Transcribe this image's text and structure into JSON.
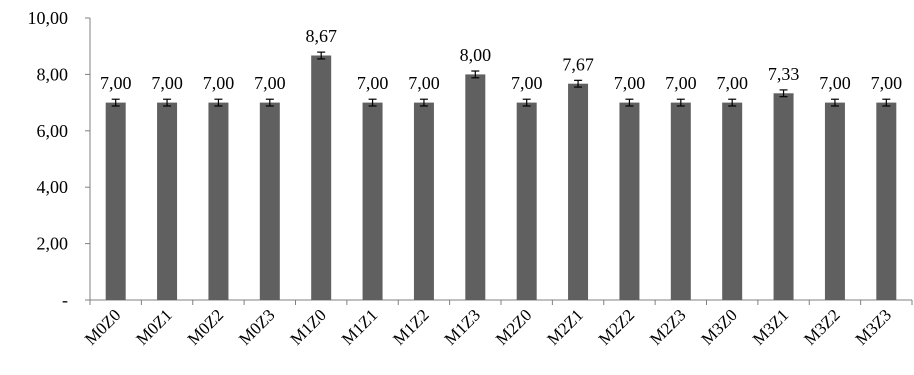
{
  "chart_data": {
    "type": "bar",
    "title": "",
    "xlabel": "",
    "ylabel": "",
    "categories": [
      "M0Z0",
      "M0Z1",
      "M0Z2",
      "M0Z3",
      "M1Z0",
      "M1Z1",
      "M1Z2",
      "M1Z3",
      "M2Z0",
      "M2Z1",
      "M2Z2",
      "M2Z3",
      "M3Z0",
      "M3Z1",
      "M3Z2",
      "M3Z3"
    ],
    "values": [
      7.0,
      7.0,
      7.0,
      7.0,
      8.67,
      7.0,
      7.0,
      8.0,
      7.0,
      7.67,
      7.0,
      7.0,
      7.0,
      7.33,
      7.0,
      7.0
    ],
    "value_labels": [
      "7,00",
      "7,00",
      "7,00",
      "7,00",
      "8,67",
      "7,00",
      "7,00",
      "8,00",
      "7,00",
      "7,67",
      "7,00",
      "7,00",
      "7,00",
      "7,33",
      "7,00",
      "7,00"
    ],
    "error": [
      0.12,
      0.12,
      0.12,
      0.12,
      0.12,
      0.12,
      0.12,
      0.12,
      0.12,
      0.12,
      0.12,
      0.12,
      0.12,
      0.12,
      0.12,
      0.12
    ],
    "ylim": [
      0,
      10
    ],
    "yticks": [
      0,
      2,
      4,
      6,
      8,
      10
    ],
    "ytick_labels": [
      "-",
      "2,00",
      "4,00",
      "6,00",
      "8,00",
      "10,00"
    ],
    "grid": false,
    "legend": "none",
    "bar_color": "#606060",
    "axis_color": "#808080"
  }
}
